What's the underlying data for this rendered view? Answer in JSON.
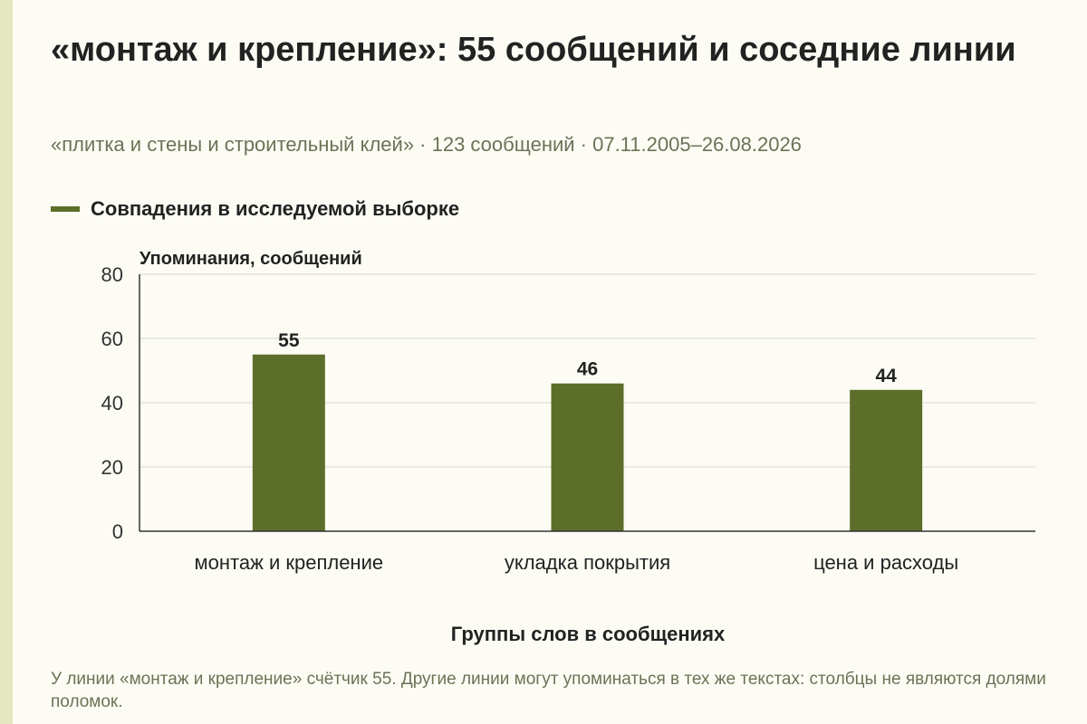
{
  "title": "«монтаж и крепление»: 55 сообщений и соседние линии",
  "subtitle": "«плитка и стены и строительный клей» · 123 сообщений · 07.11.2005–26.08.2026",
  "legend": {
    "label": "Совпадения в исследуемой выборке"
  },
  "note": "У линии «монтаж и крепление» счётчик 55. Другие линии могут упоминаться в тех же текстах: столбцы не являются долями поломок.",
  "colors": {
    "bar": "#5d6e2a",
    "background": "#fdfcf4",
    "accent_stripe": "#e3e8c2",
    "muted_text": "#6d7256"
  },
  "chart_data": {
    "type": "bar",
    "categories": [
      "монтаж и крепление",
      "укладка покрытия",
      "цена и расходы"
    ],
    "series": [
      {
        "name": "Совпадения в исследуемой выборке",
        "values": [
          55,
          46,
          44
        ]
      }
    ],
    "data_labels": [
      "55",
      "46",
      "44"
    ],
    "ylabel": "Упоминания, сообщений",
    "xlabel": "Группы слов в сообщениях",
    "ylim": [
      0,
      80
    ],
    "yticks": [
      0,
      20,
      40,
      60,
      80
    ],
    "ytick_labels": [
      "0",
      "20",
      "40",
      "60",
      "80"
    ],
    "grid": true,
    "legend_position": "top-left"
  }
}
